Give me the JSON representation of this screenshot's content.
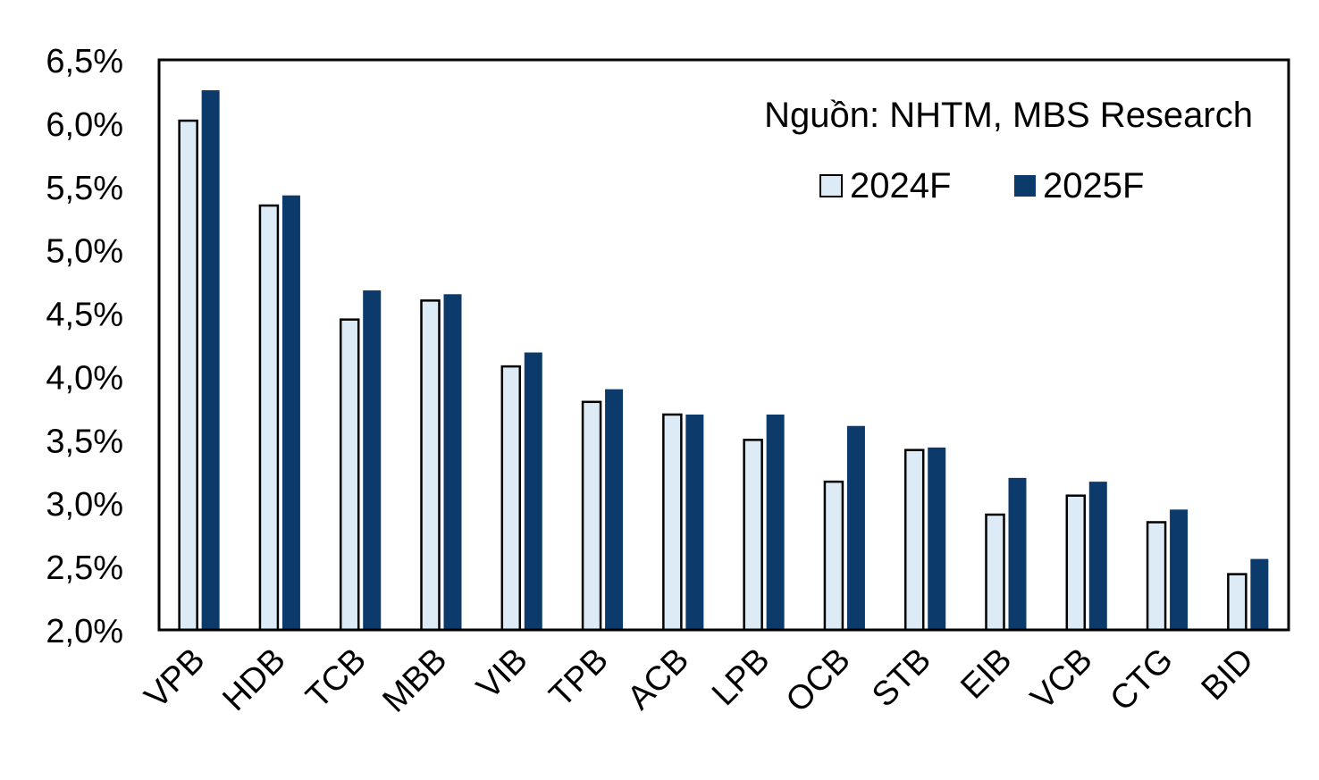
{
  "chart_data": {
    "type": "bar",
    "annotation": "Nguồn: NHTM, MBS Research",
    "categories": [
      "VPB",
      "HDB",
      "TCB",
      "MBB",
      "VIB",
      "TPB",
      "ACB",
      "LPB",
      "OCB",
      "STB",
      "EIB",
      "VCB",
      "CTG",
      "BID"
    ],
    "series": [
      {
        "name": "2024F",
        "color": "#DDEBF7",
        "values": [
          6.02,
          5.35,
          4.45,
          4.6,
          4.08,
          3.8,
          3.7,
          3.5,
          3.17,
          3.42,
          2.91,
          3.06,
          2.85,
          2.44
        ]
      },
      {
        "name": "2025F",
        "color": "#0B3A6B",
        "values": [
          6.26,
          5.43,
          4.68,
          4.65,
          4.19,
          3.9,
          3.7,
          3.7,
          3.61,
          3.44,
          3.2,
          3.17,
          2.95,
          2.56
        ]
      }
    ],
    "y_ticks": [
      "2,0%",
      "2,5%",
      "3,0%",
      "3,5%",
      "4,0%",
      "4,5%",
      "5,0%",
      "5,5%",
      "6,0%",
      "6,5%"
    ],
    "ylim": [
      2.0,
      6.5
    ],
    "grid": false,
    "legend_position": "top-right"
  }
}
